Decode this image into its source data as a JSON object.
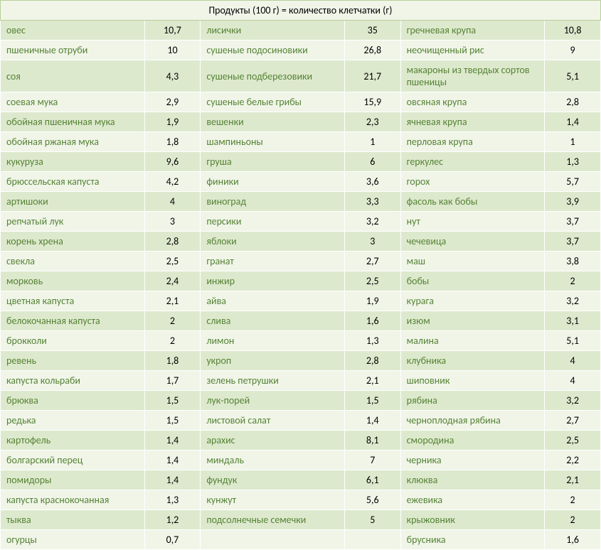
{
  "title": "Продукты (100 г) = количество клетчатки (г)",
  "colors": {
    "even_row": "#dde9cd",
    "odd_row": "#f0f5e8",
    "header_bg": "#f0f5e8",
    "header_border": "#b8cf99",
    "name_text": "#568336",
    "val_text": "#000000"
  },
  "rows": [
    {
      "n1": "овес",
      "v1": "10,7",
      "n2": "лисички",
      "v2": "35",
      "n3": "гречневая крупа",
      "v3": "10,8"
    },
    {
      "n1": "пшеничные отруби",
      "v1": "10",
      "n2": "сушеные подосиновики",
      "v2": "26,8",
      "n3": "неочищенный рис",
      "v3": "9"
    },
    {
      "n1": "соя",
      "v1": "4,3",
      "n2": "сушеные подберезовики",
      "v2": "21,7",
      "n3": "макароны из твердых сортов пшеницы",
      "v3": "5,1"
    },
    {
      "n1": "соевая мука",
      "v1": "2,9",
      "n2": "сушеные белые грибы",
      "v2": "15,9",
      "n3": "овсяная крупа",
      "v3": "2,8"
    },
    {
      "n1": "обойная пшеничная мука",
      "v1": "1,9",
      "n2": "вешенки",
      "v2": "2,3",
      "n3": "ячневая крупа",
      "v3": "1,4"
    },
    {
      "n1": "обойная ржаная мука",
      "v1": "1,8",
      "n2": "шампиньоны",
      "v2": "1",
      "n3": "перловая крупа",
      "v3": "1"
    },
    {
      "n1": "кукуруза",
      "v1": "9,6",
      "n2": "груша",
      "v2": "6",
      "n3": "геркулес",
      "v3": "1,3"
    },
    {
      "n1": "брюссельская капуста",
      "v1": "4,2",
      "n2": "финики",
      "v2": "3,6",
      "n3": "горох",
      "v3": "5,7"
    },
    {
      "n1": "артишоки",
      "v1": "4",
      "n2": "виноград",
      "v2": "3,3",
      "n3": "фасоль как бобы",
      "v3": "3,9"
    },
    {
      "n1": "репчатый лук",
      "v1": "3",
      "n2": "персики",
      "v2": "3,2",
      "n3": "нут",
      "v3": "3,7"
    },
    {
      "n1": "корень хрена",
      "v1": "2,8",
      "n2": "яблоки",
      "v2": "3",
      "n3": "чечевица",
      "v3": "3,7"
    },
    {
      "n1": "свекла",
      "v1": "2,5",
      "n2": "гранат",
      "v2": "2,7",
      "n3": "маш",
      "v3": "3,8"
    },
    {
      "n1": "морковь",
      "v1": "2,4",
      "n2": "инжир",
      "v2": "2,5",
      "n3": "бобы",
      "v3": "2"
    },
    {
      "n1": "цветная капуста",
      "v1": "2,1",
      "n2": "айва",
      "v2": "1,9",
      "n3": "курага",
      "v3": "3,2"
    },
    {
      "n1": "белокочанная капуста",
      "v1": "2",
      "n2": "слива",
      "v2": "1,6",
      "n3": "изюм",
      "v3": "3,1"
    },
    {
      "n1": "брокколи",
      "v1": "2",
      "n2": "лимон",
      "v2": "1,3",
      "n3": "малина",
      "v3": "5,1"
    },
    {
      "n1": "ревень",
      "v1": "1,8",
      "n2": "укроп",
      "v2": "2,8",
      "n3": "клубника",
      "v3": "4"
    },
    {
      "n1": "капуста кольраби",
      "v1": "1,7",
      "n2": "зелень петрушки",
      "v2": "2,1",
      "n3": "шиповник",
      "v3": "4"
    },
    {
      "n1": "брюква",
      "v1": "1,5",
      "n2": "лук-порей",
      "v2": "1,5",
      "n3": "рябина",
      "v3": "3,2"
    },
    {
      "n1": "редька",
      "v1": "1,5",
      "n2": "листовой салат",
      "v2": "1,4",
      "n3": "черноплодная рябина",
      "v3": "2,7"
    },
    {
      "n1": "картофель",
      "v1": "1,4",
      "n2": "арахис",
      "v2": "8,1",
      "n3": "смородина",
      "v3": "2,5"
    },
    {
      "n1": "болгарский перец",
      "v1": "1,4",
      "n2": "миндаль",
      "v2": "7",
      "n3": "черника",
      "v3": "2,2"
    },
    {
      "n1": "помидоры",
      "v1": "1,4",
      "n2": "фундук",
      "v2": "6,1",
      "n3": "клюква",
      "v3": "2,1"
    },
    {
      "n1": "капуста краснокочанная",
      "v1": "1,3",
      "n2": "кунжут",
      "v2": "5,6",
      "n3": "ежевика",
      "v3": "2"
    },
    {
      "n1": "тыква",
      "v1": "1,2",
      "n2": "подсолнечные семечки",
      "v2": "5",
      "n3": "крыжовник",
      "v3": "2"
    },
    {
      "n1": "огурцы",
      "v1": "0,7",
      "n2": "",
      "v2": "",
      "n3": "брусника",
      "v3": "1,6"
    }
  ]
}
